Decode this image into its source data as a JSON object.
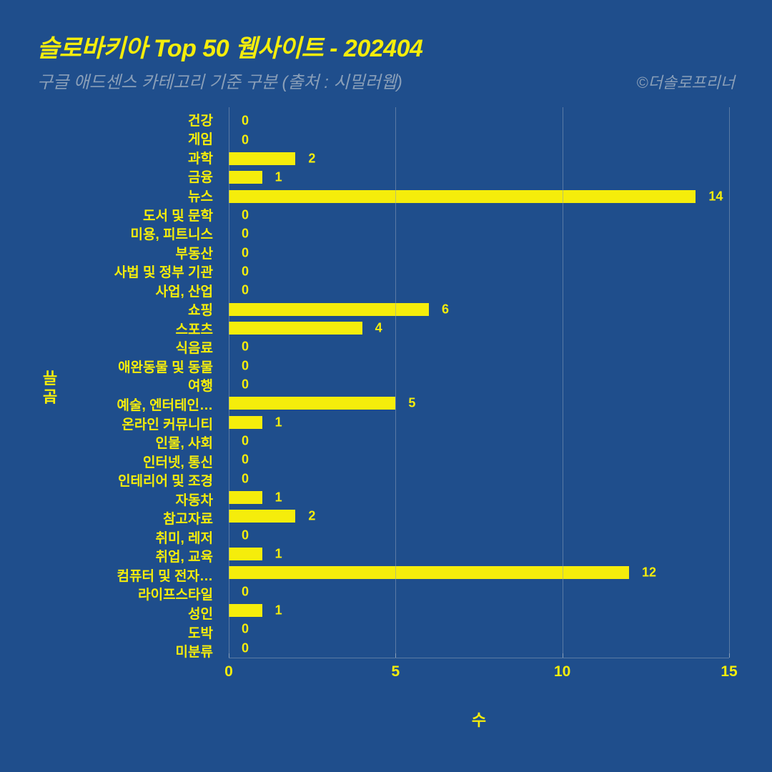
{
  "title": "슬로바키아 Top 50 웹사이트 - 202404",
  "subtitle": "구글 애드센스 카테고리 기준 구분 (출처 : 시밀러웹)",
  "credit": "©더솔로프리너",
  "chart": {
    "type": "bar-horizontal",
    "background_color": "#1f4e8c",
    "bar_color": "#f5ed0b",
    "text_color": "#f5ed0b",
    "muted_text_color": "#8a9fb8",
    "grid_color": "#8a9fb8",
    "x_title": "수",
    "y_title": "분류",
    "xlim": [
      0,
      15
    ],
    "xticks": [
      0,
      5,
      10,
      15
    ],
    "title_fontsize": 34,
    "subtitle_fontsize": 24,
    "label_fontsize": 19,
    "tick_fontsize": 21,
    "categories": [
      {
        "label": "건강",
        "value": 0
      },
      {
        "label": "게임",
        "value": 0
      },
      {
        "label": "과학",
        "value": 2
      },
      {
        "label": "금융",
        "value": 1
      },
      {
        "label": "뉴스",
        "value": 14
      },
      {
        "label": "도서 및 문학",
        "value": 0
      },
      {
        "label": "미용, 피트니스",
        "value": 0
      },
      {
        "label": "부동산",
        "value": 0
      },
      {
        "label": "사법 및 정부 기관",
        "value": 0
      },
      {
        "label": "사업, 산업",
        "value": 0
      },
      {
        "label": "쇼핑",
        "value": 6
      },
      {
        "label": "스포츠",
        "value": 4
      },
      {
        "label": "식음료",
        "value": 0
      },
      {
        "label": "애완동물 및 동물",
        "value": 0
      },
      {
        "label": "여행",
        "value": 0
      },
      {
        "label": "예술, 엔터테인…",
        "value": 5
      },
      {
        "label": "온라인 커뮤니티",
        "value": 1
      },
      {
        "label": "인물, 사회",
        "value": 0
      },
      {
        "label": "인터넷, 통신",
        "value": 0
      },
      {
        "label": "인테리어 및 조경",
        "value": 0
      },
      {
        "label": "자동차",
        "value": 1
      },
      {
        "label": "참고자료",
        "value": 2
      },
      {
        "label": "취미, 레저",
        "value": 0
      },
      {
        "label": "취업, 교육",
        "value": 1
      },
      {
        "label": "컴퓨터 및 전자…",
        "value": 12
      },
      {
        "label": "라이프스타일",
        "value": 0
      },
      {
        "label": "성인",
        "value": 1
      },
      {
        "label": "도박",
        "value": 0
      },
      {
        "label": "미분류",
        "value": 0
      }
    ]
  }
}
